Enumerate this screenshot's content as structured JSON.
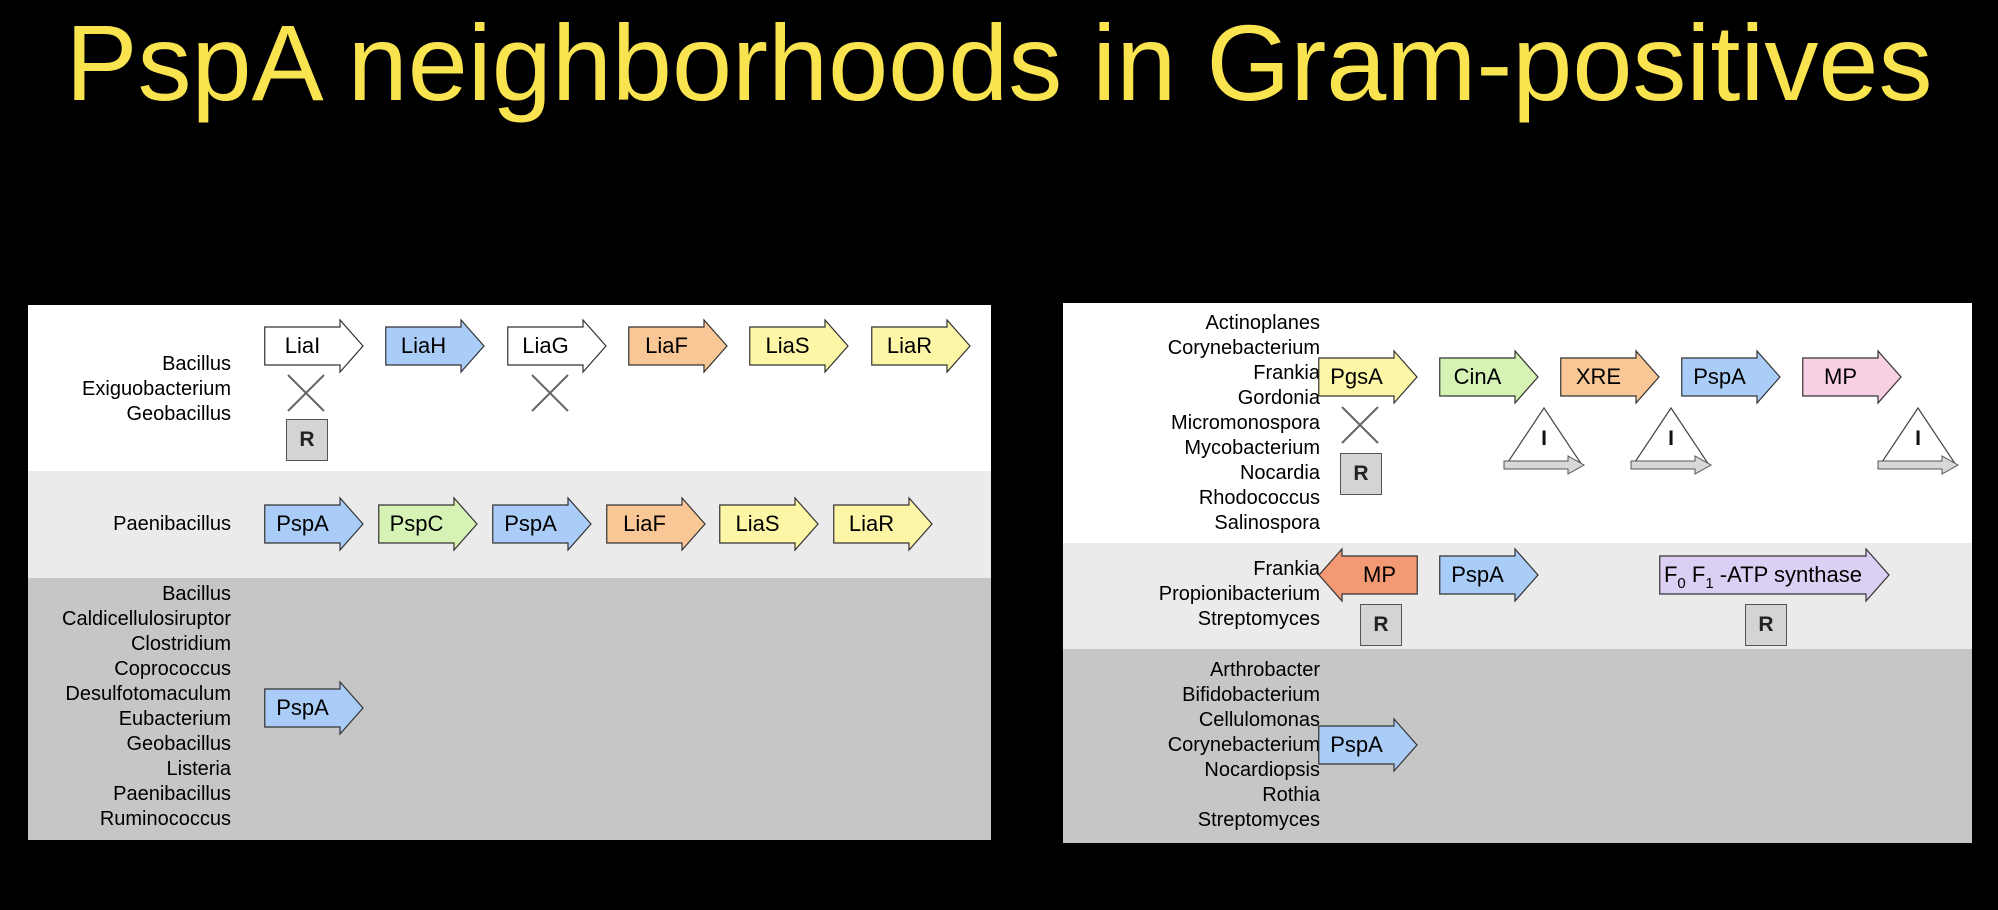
{
  "title": "PspA neighborhoods in Gram-positives",
  "colors": {
    "white": "#ffffff",
    "blue": "#a9cdf7",
    "orange": "#f9c796",
    "yellow": "#fdf6a6",
    "green": "#d6f2b4",
    "pink": "#f9cfe3",
    "salmon": "#f39a74",
    "purple": "#dccff4"
  },
  "left_panel": {
    "rows": [
      {
        "organisms": [
          "Bacillus",
          "Exiguobacterium",
          "Geobacillus"
        ],
        "genes": [
          {
            "label": "LiaI",
            "color": "white",
            "dir": "right"
          },
          {
            "label": "LiaH",
            "color": "blue",
            "dir": "right"
          },
          {
            "label": "LiaG",
            "color": "white",
            "dir": "right"
          },
          {
            "label": "LiaF",
            "color": "orange",
            "dir": "right"
          },
          {
            "label": "LiaS",
            "color": "yellow",
            "dir": "right"
          },
          {
            "label": "LiaR",
            "color": "yellow",
            "dir": "right"
          }
        ],
        "crosses": [
          "LiaI",
          "LiaG"
        ],
        "r_label": "R"
      },
      {
        "organisms": [
          "Paenibacillus"
        ],
        "genes": [
          {
            "label": "PspA",
            "color": "blue",
            "dir": "right"
          },
          {
            "label": "PspC",
            "color": "green",
            "dir": "right"
          },
          {
            "label": "PspA",
            "color": "blue",
            "dir": "right"
          },
          {
            "label": "LiaF",
            "color": "orange",
            "dir": "right"
          },
          {
            "label": "LiaS",
            "color": "yellow",
            "dir": "right"
          },
          {
            "label": "LiaR",
            "color": "yellow",
            "dir": "right"
          }
        ]
      },
      {
        "organisms": [
          "Bacillus",
          "Caldicellulosiruptor",
          "Clostridium",
          "Coprococcus",
          "Desulfotomaculum",
          "Eubacterium",
          "Geobacillus",
          "Listeria",
          "Paenibacillus",
          "Ruminococcus"
        ],
        "genes": [
          {
            "label": "PspA",
            "color": "blue",
            "dir": "right"
          }
        ]
      }
    ]
  },
  "right_panel": {
    "rows": [
      {
        "organisms": [
          "Actinoplanes",
          "Corynebacterium",
          "Frankia",
          "Gordonia",
          "Micromonospora",
          "Mycobacterium",
          "Nocardia",
          "Rhodococcus",
          "Salinospora"
        ],
        "genes": [
          {
            "label": "PgsA",
            "color": "yellow",
            "dir": "right"
          },
          {
            "label": "CinA",
            "color": "green",
            "dir": "right"
          },
          {
            "label": "XRE",
            "color": "orange",
            "dir": "right"
          },
          {
            "label": "PspA",
            "color": "blue",
            "dir": "right"
          },
          {
            "label": "MP",
            "color": "pink",
            "dir": "right"
          }
        ],
        "crosses": [
          "PgsA"
        ],
        "r_label": "R",
        "i_label": "I"
      },
      {
        "organisms": [
          "Frankia",
          "Propionibacterium",
          "Streptomyces"
        ],
        "genes": [
          {
            "label": "MP",
            "color": "salmon",
            "dir": "left"
          },
          {
            "label": "PspA",
            "color": "blue",
            "dir": "right"
          },
          {
            "label_parts": [
              "F",
              "0",
              " F",
              "1",
              " -ATP synthase"
            ],
            "color": "purple",
            "dir": "right"
          }
        ],
        "r_label": "R"
      },
      {
        "organisms": [
          "Arthrobacter",
          "Bifidobacterium",
          "Cellulomonas",
          "Corynebacterium",
          "Nocardiopsis",
          "Rothia",
          "Streptomyces"
        ],
        "genes": [
          {
            "label": "PspA",
            "color": "blue",
            "dir": "right"
          }
        ]
      }
    ]
  }
}
